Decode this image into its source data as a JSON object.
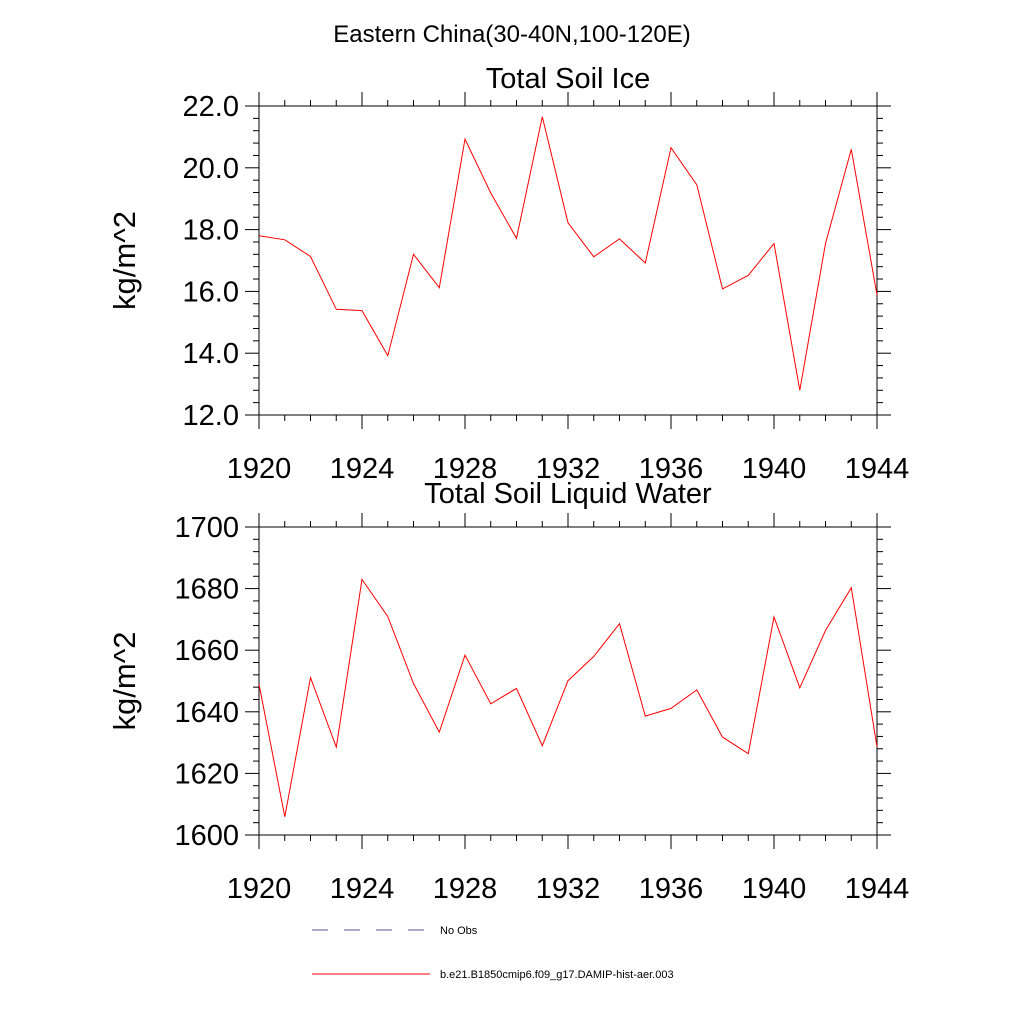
{
  "figure": {
    "title": "Eastern China(30-40N,100-120E)"
  },
  "chart_data": [
    {
      "type": "line",
      "title": "Total Soil Ice",
      "xlabel": "",
      "ylabel": "kg/m^2",
      "xlim": [
        1920,
        1944
      ],
      "ylim": [
        12.0,
        22.0
      ],
      "x_ticks": [
        1920,
        1924,
        1928,
        1932,
        1936,
        1940,
        1944
      ],
      "x_tick_labels": [
        "1920",
        "1924",
        "1928",
        "1932",
        "1936",
        "1940",
        "1944"
      ],
      "y_ticks": [
        12,
        14,
        16,
        18,
        20,
        22
      ],
      "y_tick_labels": [
        "12.0",
        "14.0",
        "16.0",
        "18.0",
        "20.0",
        "22.0"
      ],
      "series": [
        {
          "name": "b.e21.B1850cmip6.f09_g17.DAMIP-hist-aer.003",
          "color": "#ff0000",
          "x": [
            1920,
            1921,
            1922,
            1923,
            1924,
            1925,
            1926,
            1927,
            1928,
            1929,
            1930,
            1931,
            1932,
            1933,
            1934,
            1935,
            1936,
            1937,
            1938,
            1939,
            1940,
            1941,
            1942,
            1943,
            1944
          ],
          "values": [
            17.8,
            17.67,
            17.13,
            15.42,
            15.38,
            13.92,
            17.2,
            16.12,
            20.93,
            19.18,
            17.72,
            21.65,
            18.22,
            17.12,
            17.7,
            16.92,
            20.65,
            19.45,
            16.08,
            16.52,
            17.55,
            12.8,
            17.55,
            20.6,
            15.88
          ]
        }
      ],
      "grid": false
    },
    {
      "type": "line",
      "title": "Total Soil Liquid Water",
      "xlabel": "",
      "ylabel": "kg/m^2",
      "xlim": [
        1920,
        1944
      ],
      "ylim": [
        1600,
        1700
      ],
      "x_ticks": [
        1920,
        1924,
        1928,
        1932,
        1936,
        1940,
        1944
      ],
      "x_tick_labels": [
        "1920",
        "1924",
        "1928",
        "1932",
        "1936",
        "1940",
        "1944"
      ],
      "y_ticks": [
        1600,
        1620,
        1640,
        1660,
        1680,
        1700
      ],
      "y_tick_labels": [
        "1600",
        "1620",
        "1640",
        "1660",
        "1680",
        "1700"
      ],
      "series": [
        {
          "name": "b.e21.B1850cmip6.f09_g17.DAMIP-hist-aer.003",
          "color": "#ff0000",
          "x": [
            1920,
            1921,
            1922,
            1923,
            1924,
            1925,
            1926,
            1927,
            1928,
            1929,
            1930,
            1931,
            1932,
            1933,
            1934,
            1935,
            1936,
            1937,
            1938,
            1939,
            1940,
            1941,
            1942,
            1943,
            1944
          ],
          "values": [
            1649.0,
            1605.9,
            1651.1,
            1628.5,
            1683.0,
            1670.9,
            1649.2,
            1633.4,
            1658.4,
            1642.6,
            1647.6,
            1629.0,
            1650.1,
            1658.0,
            1668.6,
            1638.6,
            1641.1,
            1647.1,
            1631.8,
            1626.4,
            1670.8,
            1647.8,
            1666.4,
            1680.3,
            1628.6
          ]
        }
      ],
      "grid": false
    }
  ],
  "legend": {
    "items": [
      {
        "label": "No Obs",
        "style": "dashed",
        "color": "#5a5a8c"
      },
      {
        "label": "b.e21.B1850cmip6.f09_g17.DAMIP-hist-aer.003",
        "style": "solid",
        "color": "#ff0000"
      }
    ]
  }
}
